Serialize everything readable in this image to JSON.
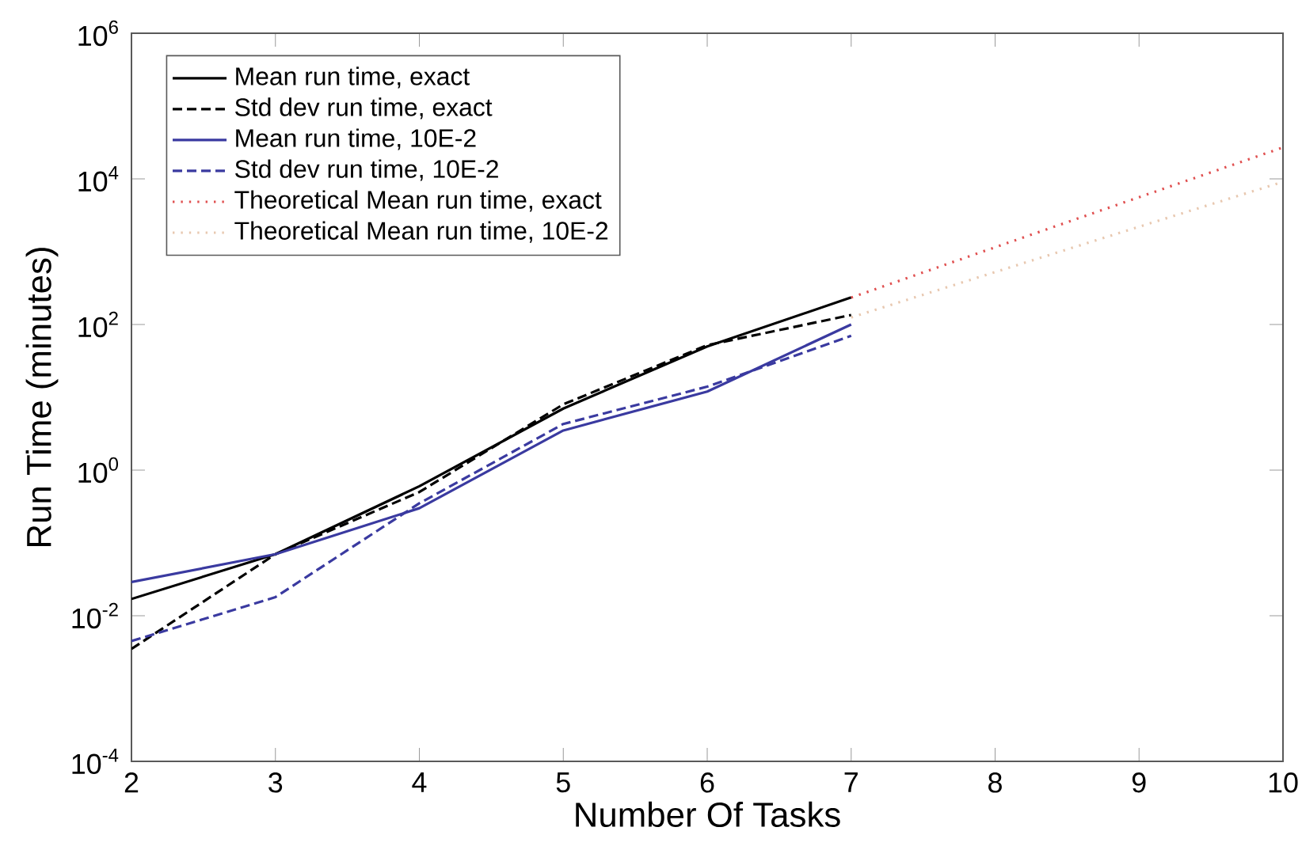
{
  "chart_data": {
    "type": "line",
    "xlabel": "Number Of Tasks",
    "ylabel": "Run Time (minutes)",
    "log": "y",
    "legend": "top left",
    "grid": false,
    "xlim": [
      2,
      10
    ],
    "xticks": [
      2,
      3,
      4,
      5,
      6,
      7,
      8,
      9,
      10
    ],
    "ylim": [
      0.0001,
      1000000
    ],
    "yticks": [
      {
        "value": 0.0001,
        "label": "10$^{-4}$"
      },
      {
        "value": 0.01,
        "label": "10$^{-2}$"
      },
      {
        "value": 1,
        "label": "10$^{0}$"
      },
      {
        "value": 100,
        "label": "10$^{2}$"
      },
      {
        "value": 10000,
        "label": "10$^{4}$"
      },
      {
        "value": 1000000,
        "label": "10$^{6}$"
      }
    ],
    "x": [
      2,
      3,
      4,
      5,
      6,
      7
    ],
    "series": [
      {
        "name": "Mean run time, exact",
        "color": "#000000",
        "line_style": "solid",
        "values": [
          0.017,
          0.07,
          0.6,
          7,
          50,
          235
        ]
      },
      {
        "name": "Std dev run time, exact",
        "color": "#000000",
        "line_style": "dashed",
        "values": [
          0.0035,
          0.07,
          0.5,
          8,
          52,
          135
        ]
      },
      {
        "name": "Mean run time, 10E-2",
        "color": "#3a3aa0",
        "line_style": "solid",
        "values": [
          0.029,
          0.07,
          0.3,
          3.5,
          12,
          100
        ]
      },
      {
        "name": "Std dev run time, 10E-2",
        "color": "#3a3aa0",
        "line_style": "dashed",
        "values": [
          0.0045,
          0.018,
          0.35,
          4.3,
          14,
          70
        ]
      },
      {
        "name": "Theoretical Mean run time, exact",
        "color": "#e05050",
        "line_style": "dotted",
        "x": [
          7,
          8,
          9,
          10
        ],
        "values": [
          234,
          1150,
          5600,
          27000
        ]
      },
      {
        "name": "Theoretical Mean run time, 10E-2",
        "color": "#e8c8b0",
        "line_style": "dotted",
        "x": [
          7,
          8,
          9,
          10
        ],
        "values": [
          125,
          525,
          2200,
          9100
        ]
      }
    ]
  }
}
